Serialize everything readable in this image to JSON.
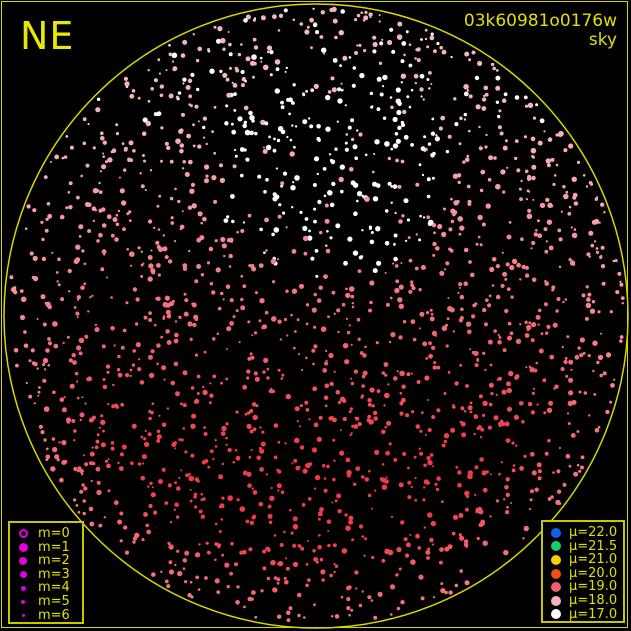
{
  "header": {
    "direction": "NE",
    "image_id": "03k60981o0176w",
    "mode": "sky"
  },
  "colors": {
    "frame": "#d8d800",
    "text": "#e0e000",
    "magnitude_symbol": "#e000e0"
  },
  "magnitude_legend": [
    {
      "label": "m=0",
      "size": 9,
      "hollow": true
    },
    {
      "label": "m=1",
      "size": 9
    },
    {
      "label": "m=2",
      "size": 8
    },
    {
      "label": "m=3",
      "size": 7
    },
    {
      "label": "m=4",
      "size": 5
    },
    {
      "label": "m=5",
      "size": 4
    },
    {
      "label": "m=6",
      "size": 3
    }
  ],
  "brightness_legend": [
    {
      "label": "μ=22.0",
      "color": "#1060f0"
    },
    {
      "label": "μ=21.5",
      "color": "#10d070"
    },
    {
      "label": "μ=21.0",
      "color": "#f0d000"
    },
    {
      "label": "μ=20.0",
      "color": "#f05010"
    },
    {
      "label": "μ=19.0",
      "color": "#f06070"
    },
    {
      "label": "μ=18.0",
      "color": "#f8b0c0"
    },
    {
      "label": "μ=17.0",
      "color": "#ffffff"
    }
  ]
}
